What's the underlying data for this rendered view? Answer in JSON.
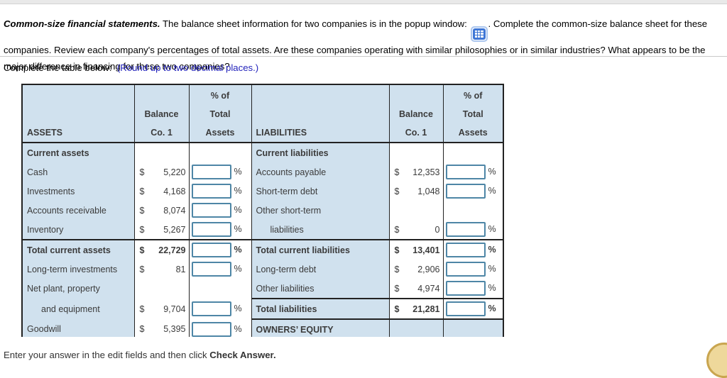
{
  "intro": {
    "heading": "Common-size financial statements.",
    "text_before_icon": "  The balance sheet information for two companies is in the popup window:",
    "text_after_icon": ".  Complete the common-size balance sheet for these companies.  Review each company's percentages of total assets.  Are these companies operating with similar philosophies or in similar industries?  What appears to be the major difference in financing for these two companies?"
  },
  "instruction": {
    "label": "Complete the table below:",
    "note": "(Round up to two decimal places.)"
  },
  "table": {
    "assets": {
      "title": "ASSETS",
      "balance_header": [
        "Balance",
        "Co. 1"
      ],
      "pct_header": [
        "% of",
        "Total",
        "Assets"
      ],
      "rows": [
        {
          "label": "Current assets",
          "bold": true
        },
        {
          "label": "Cash",
          "dollar": "$",
          "value": "5,220",
          "input": true,
          "pct": "%"
        },
        {
          "label": "Investments",
          "dollar": "$",
          "value": "4,168",
          "input": true,
          "pct": "%"
        },
        {
          "label": "Accounts receivable",
          "dollar": "$",
          "value": "8,074",
          "input": true,
          "pct": "%"
        },
        {
          "label": "Inventory",
          "dollar": "$",
          "value": "5,267",
          "input": true,
          "pct": "%"
        },
        {
          "label": "Total current assets",
          "bold": true,
          "sep_above": true,
          "dollar": "$",
          "value": "22,729",
          "input": true,
          "pct": "%"
        },
        {
          "label": "Long-term investments",
          "dollar": "$",
          "value": "81",
          "input": true,
          "pct": "%"
        },
        {
          "label": "Net plant, property"
        },
        {
          "label": "and equipment",
          "indent": true,
          "dollar": "$",
          "value": "9,704",
          "input": true,
          "pct": "%"
        },
        {
          "label": "Goodwill",
          "dollar": "$",
          "value": "5,395",
          "input": true,
          "pct": "%"
        },
        {
          "label": "",
          "sep_above": true,
          "input": true,
          "pct": "%",
          "partial": true
        }
      ]
    },
    "liabilities": {
      "title": "LIABILITIES",
      "balance_header": [
        "Balance",
        "Co. 1"
      ],
      "pct_header": [
        "% of",
        "Total",
        "Assets"
      ],
      "rows": [
        {
          "label": "Current liabilities",
          "bold": true
        },
        {
          "label": "Accounts payable",
          "dollar": "$",
          "value": "12,353",
          "input": true,
          "pct": "%"
        },
        {
          "label": "Short-term debt",
          "dollar": "$",
          "value": "1,048",
          "input": true,
          "pct": "%"
        },
        {
          "label": "Other short-term"
        },
        {
          "label": "liabilities",
          "indent": true,
          "dollar": "$",
          "value": "0",
          "input": true,
          "pct": "%"
        },
        {
          "label": "Total current liabilities",
          "bold": true,
          "sep_above": true,
          "dollar": "$",
          "value": "13,401",
          "input": true,
          "pct": "%"
        },
        {
          "label": "Long-term debt",
          "dollar": "$",
          "value": "2,906",
          "input": true,
          "pct": "%"
        },
        {
          "label": "Other liabilities",
          "dollar": "$",
          "value": "4,974",
          "input": true,
          "pct": "%"
        },
        {
          "label": "Total liabilities",
          "bold": true,
          "sep_above": true,
          "dollar": "$",
          "value": "21,281",
          "input": true,
          "pct": "%"
        },
        {
          "label": "OWNERS’ EQUITY",
          "bold": true,
          "sep_above": true,
          "blue_row": true
        },
        {
          "label": "",
          "sep_above": true,
          "input": true,
          "pct": "%",
          "partial": true
        }
      ]
    }
  },
  "footer": {
    "text": "Enter your answer in the edit fields and then click ",
    "bold": "Check Answer."
  },
  "colors": {
    "cell_blue": "#d0e1ee",
    "table_border": "#222222",
    "input_border": "#4e86a6",
    "note_blue": "#2222bb",
    "icon_blue": "#3f77d6",
    "badge_yellow": "#eed89b"
  }
}
